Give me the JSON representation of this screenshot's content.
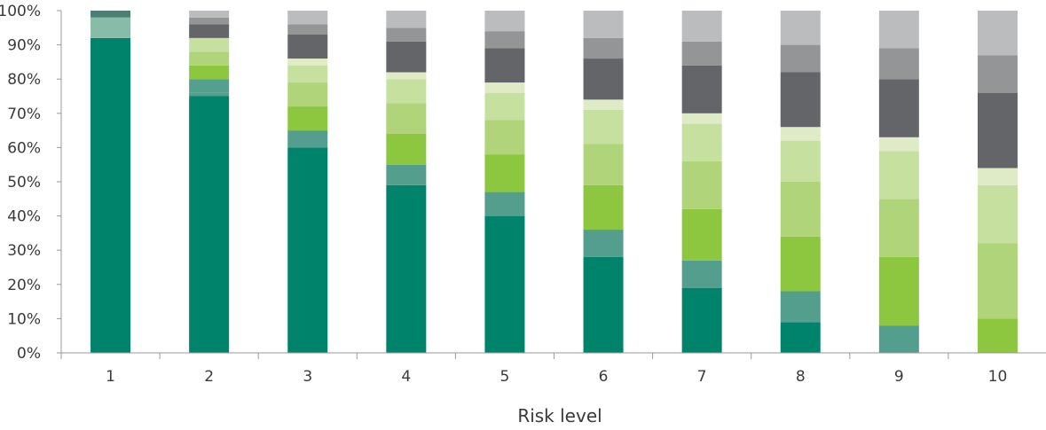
{
  "chart_data": {
    "type": "bar",
    "stacked": true,
    "categories": [
      "1",
      "2",
      "3",
      "4",
      "5",
      "6",
      "7",
      "8",
      "9",
      "10"
    ],
    "xlabel": "Risk level",
    "ylabel": "",
    "ylim": [
      0,
      100
    ],
    "yticks": [
      "0%",
      "10%",
      "20%",
      "30%",
      "40%",
      "50%",
      "60%",
      "70%",
      "80%",
      "90%",
      "100%"
    ],
    "grid": false,
    "legend": "none",
    "series": [
      {
        "color": "#00836b",
        "values": [
          92,
          75,
          60,
          49,
          40,
          28,
          19,
          9,
          0,
          0
        ]
      },
      {
        "color": "#549e8e",
        "values": [
          0,
          1,
          5,
          6,
          7,
          8,
          8,
          9,
          8,
          0
        ]
      },
      {
        "color": "#54a08f",
        "values": [
          0,
          4,
          0,
          0,
          0,
          0,
          0,
          0,
          0,
          0
        ]
      },
      {
        "color": "#88bca9",
        "values": [
          6,
          0,
          0,
          0,
          0,
          0,
          0,
          0,
          0,
          0
        ]
      },
      {
        "color": "#8dc63f",
        "values": [
          0,
          4,
          7,
          9,
          11,
          13,
          15,
          16,
          20,
          10
        ]
      },
      {
        "color": "#b0d47a",
        "values": [
          0,
          4,
          7,
          9,
          10,
          12,
          14,
          16,
          17,
          22
        ]
      },
      {
        "color": "#c6e0a0",
        "values": [
          0,
          4,
          5,
          7,
          8,
          10,
          11,
          12,
          14,
          17
        ]
      },
      {
        "color": "#deebc6",
        "values": [
          0,
          0,
          2,
          2,
          3,
          3,
          3,
          4,
          4,
          5
        ]
      },
      {
        "color": "#646568",
        "values": [
          0,
          4,
          7,
          9,
          10,
          12,
          14,
          16,
          17,
          22
        ]
      },
      {
        "color": "#4d7e73",
        "values": [
          2,
          0,
          0,
          0,
          0,
          0,
          0,
          0,
          0,
          0
        ]
      },
      {
        "color": "#949597",
        "values": [
          0,
          2,
          3,
          4,
          5,
          6,
          7,
          8,
          9,
          11
        ]
      },
      {
        "color": "#bbbcbe",
        "values": [
          0,
          2,
          4,
          5,
          6,
          8,
          9,
          10,
          11,
          13
        ]
      }
    ]
  }
}
